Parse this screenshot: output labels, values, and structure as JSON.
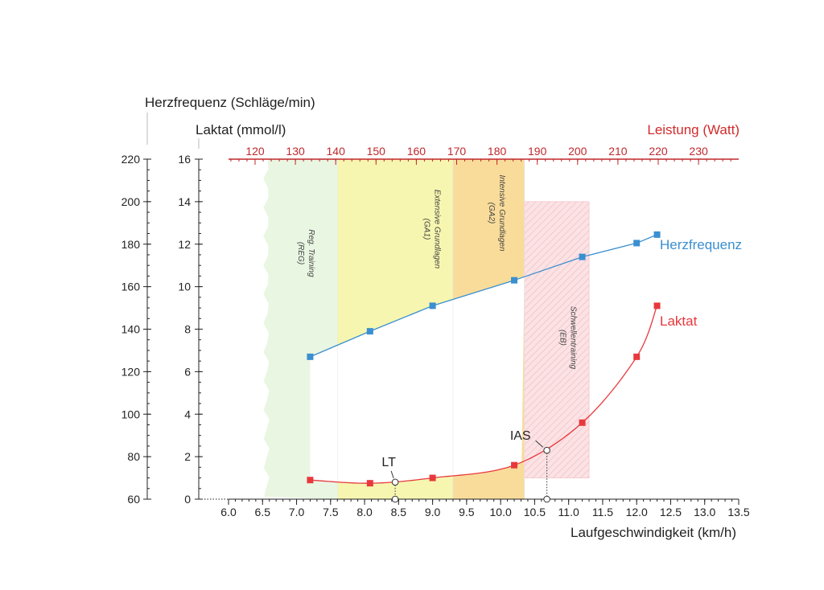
{
  "chart_data": {
    "type": "line",
    "title": "",
    "xlabel": "Laufgeschwindigkeit (km/h)",
    "xlim": [
      6.0,
      13.5
    ],
    "x_ticks": [
      "6.0",
      "6.5",
      "7.0",
      "7.5",
      "8.0",
      "8.5",
      "9.0",
      "9.5",
      "10.0",
      "10.5",
      "11.0",
      "11.5",
      "12.0",
      "12.5",
      "13.0",
      "13.5"
    ],
    "ylabel_hr": "Herzfrequenz (Schläge/min)",
    "hr_lim": [
      60,
      220
    ],
    "hr_ticks": [
      "60",
      "80",
      "100",
      "120",
      "140",
      "160",
      "180",
      "200",
      "220"
    ],
    "ylabel_lactate": "Laktat (mmol/l)",
    "lactate_lim": [
      0,
      16
    ],
    "lactate_ticks": [
      "0",
      "2",
      "4",
      "6",
      "8",
      "10",
      "12",
      "14",
      "16"
    ],
    "top_axis_label": "Leistung (Watt)",
    "top_ticks": [
      "120",
      "130",
      "140",
      "150",
      "160",
      "170",
      "180",
      "190",
      "200",
      "210",
      "220",
      "230"
    ],
    "x": [
      7.2,
      8.08,
      9.0,
      10.2,
      11.2,
      12.0,
      12.3
    ],
    "series": [
      {
        "name": "Herzfrequenz",
        "axis": "hr",
        "color": "#3a8fd0",
        "values": [
          127,
          139,
          151,
          163,
          174,
          180.5,
          184.5
        ]
      },
      {
        "name": "Laktat",
        "axis": "lactate",
        "color": "#e8383d",
        "values": [
          0.9,
          0.75,
          1.0,
          1.6,
          3.6,
          6.7,
          9.1
        ]
      }
    ],
    "zones": [
      {
        "label": "Reg. Training",
        "abbr": "(REG)",
        "from": 6.5,
        "to": 7.6,
        "color": "#e9f6e2"
      },
      {
        "label": "Extensive Grundlagen",
        "abbr": "(GA1)",
        "from": 7.6,
        "to": 9.3,
        "color": "#f6f6b0"
      },
      {
        "label": "Intensive Grundlagen",
        "abbr": "(GA2)",
        "from": 9.3,
        "to": 10.35,
        "color": "#f9dc9a"
      },
      {
        "label": "Schwellentraining",
        "abbr": "(EB)",
        "from": 10.35,
        "to": 11.3,
        "lactate_range": [
          1,
          14
        ],
        "color": "#fbe3e5"
      }
    ],
    "markers": [
      {
        "label": "LT",
        "x": 8.45,
        "lactate": 0.8
      },
      {
        "label": "IAS",
        "x": 10.68,
        "lactate": 2.3
      }
    ]
  }
}
